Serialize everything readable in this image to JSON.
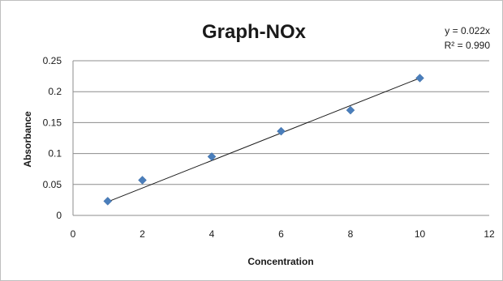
{
  "chart_data": {
    "type": "scatter",
    "title": "Graph-NOx",
    "xlabel": "Concentration",
    "ylabel": "Absorbance",
    "xlim": [
      0,
      12
    ],
    "ylim": [
      0,
      0.25
    ],
    "x_ticks": [
      "0",
      "2",
      "4",
      "6",
      "8",
      "10",
      "12"
    ],
    "y_ticks": [
      "0",
      "0.05",
      "0.1",
      "0.15",
      "0.2",
      "0.25"
    ],
    "grid": "horizontal",
    "series": [
      {
        "x": [
          1,
          2,
          4,
          6,
          8,
          10
        ],
        "y": [
          0.023,
          0.057,
          0.095,
          0.136,
          0.17,
          0.222
        ],
        "marker": "diamond",
        "color": "#4a7ebb"
      }
    ],
    "trendline": {
      "type": "linear",
      "x_range": [
        1,
        10
      ],
      "y_range": [
        0.022,
        0.222
      ],
      "color": "#1a1a1a",
      "equation": "y = 0.022x",
      "r2_label": "R² = 0.990"
    }
  }
}
